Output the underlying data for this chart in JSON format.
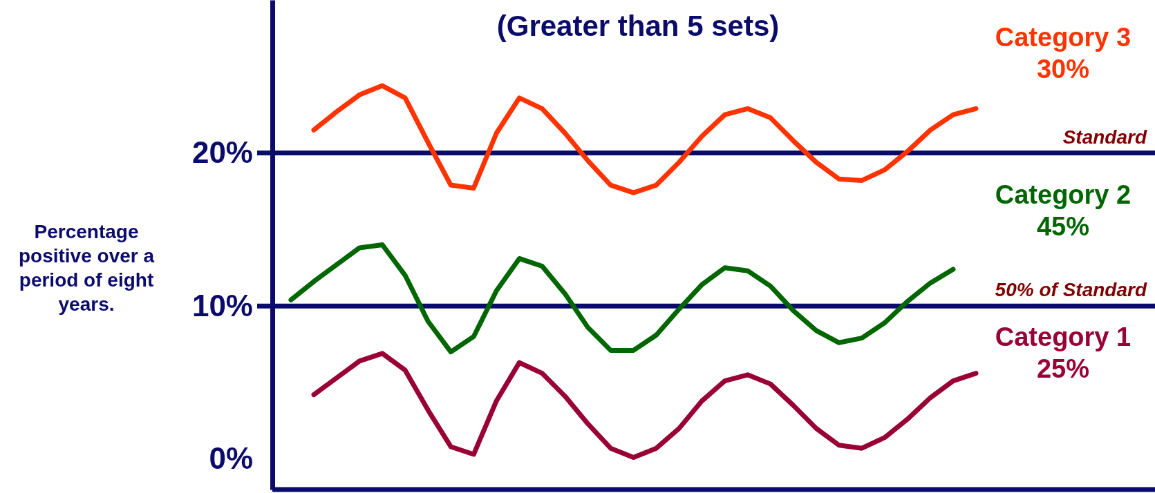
{
  "chart_data": {
    "type": "line",
    "title": "(Greater than 5 sets)",
    "ylabel": "Percentage positive over a period of eight years.",
    "categories": [
      null,
      null,
      null,
      null,
      null,
      null,
      null,
      null,
      null,
      null,
      null,
      null,
      null,
      null,
      null,
      null,
      null,
      null,
      null,
      null,
      null,
      null,
      null,
      null,
      null,
      null,
      null,
      null,
      null,
      null,
      null
    ],
    "ylim": [
      -2,
      30
    ],
    "yticks": [
      {
        "value": 0,
        "label": "0%"
      },
      {
        "value": 10,
        "label": "10%"
      },
      {
        "value": 20,
        "label": "20%"
      }
    ],
    "tick_labels": "y",
    "marker": "none",
    "line_style": "solid",
    "series": [
      {
        "name": "Category 3",
        "color": "#ff3300",
        "values": [
          null,
          21.5,
          22.7,
          23.8,
          24.4,
          23.6,
          20.7,
          17.9,
          17.7,
          21.3,
          23.6,
          22.9,
          21.3,
          19.5,
          17.9,
          17.4,
          17.9,
          19.4,
          21.1,
          22.5,
          22.9,
          22.3,
          20.8,
          19.4,
          18.3,
          18.2,
          18.9,
          20.1,
          21.5,
          22.5,
          22.9
        ]
      },
      {
        "name": "Category 2",
        "color": "#006600",
        "values": [
          10.4,
          11.6,
          12.7,
          13.8,
          14.0,
          12.0,
          9.0,
          7.0,
          8.0,
          11.0,
          13.1,
          12.6,
          10.8,
          8.6,
          7.1,
          7.1,
          8.1,
          9.8,
          11.4,
          12.5,
          12.3,
          11.3,
          9.7,
          8.4,
          7.6,
          7.9,
          8.9,
          10.3,
          11.5,
          12.4,
          null
        ]
      },
      {
        "name": "Category 1",
        "color": "#990033",
        "values": [
          null,
          4.2,
          5.3,
          6.4,
          6.9,
          5.8,
          3.2,
          0.8,
          0.3,
          3.8,
          6.3,
          5.6,
          4.1,
          2.3,
          0.7,
          0.1,
          0.7,
          2.0,
          3.8,
          5.1,
          5.5,
          4.9,
          3.5,
          2.0,
          0.9,
          0.7,
          1.4,
          2.6,
          4.0,
          5.1,
          5.6
        ]
      }
    ],
    "ref_lines": [
      {
        "axis": "y",
        "value": 20,
        "label": "Standard",
        "color": "#0b0b6b"
      },
      {
        "axis": "y",
        "value": 10,
        "label": "50% of Standard",
        "color": "#0b0b6b"
      }
    ],
    "annotations": [
      "30%",
      "45%",
      "25%"
    ]
  }
}
